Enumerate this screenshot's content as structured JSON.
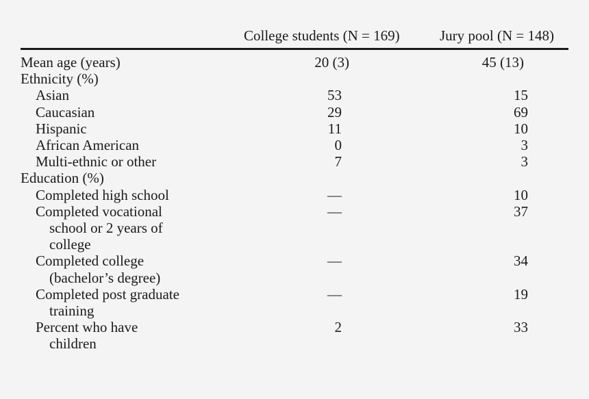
{
  "table": {
    "header": {
      "col_students": "College students (N = 169)",
      "col_jury": "Jury pool (N = 148)"
    },
    "rows": [
      {
        "label": "Mean age (years)",
        "students": "20 (3)",
        "jury": "45 (13)"
      },
      {
        "label": "Ethnicity (%)",
        "students": "",
        "jury": ""
      },
      {
        "label": "Asian",
        "students": "53",
        "jury": "15"
      },
      {
        "label": "Caucasian",
        "students": "29",
        "jury": "69"
      },
      {
        "label": "Hispanic",
        "students": "11",
        "jury": "10"
      },
      {
        "label": "African American",
        "students": "0",
        "jury": "3"
      },
      {
        "label": "Multi-ethnic or other",
        "students": "7",
        "jury": "3"
      },
      {
        "label": "Education (%)",
        "students": "",
        "jury": ""
      },
      {
        "label": "Completed high school",
        "students": "—",
        "jury": "10"
      },
      {
        "label": "Completed vocational",
        "label_cont1": "school or 2 years of",
        "label_cont2": "college",
        "students": "—",
        "jury": "37"
      },
      {
        "label": "Completed college",
        "label_cont1": "(bachelor’s degree)",
        "students": "—",
        "jury": "34"
      },
      {
        "label": "Completed post graduate",
        "label_cont1": "training",
        "students": "—",
        "jury": "19"
      },
      {
        "label": "Percent who have",
        "label_cont1": "children",
        "students": "2",
        "jury": "33"
      }
    ]
  }
}
